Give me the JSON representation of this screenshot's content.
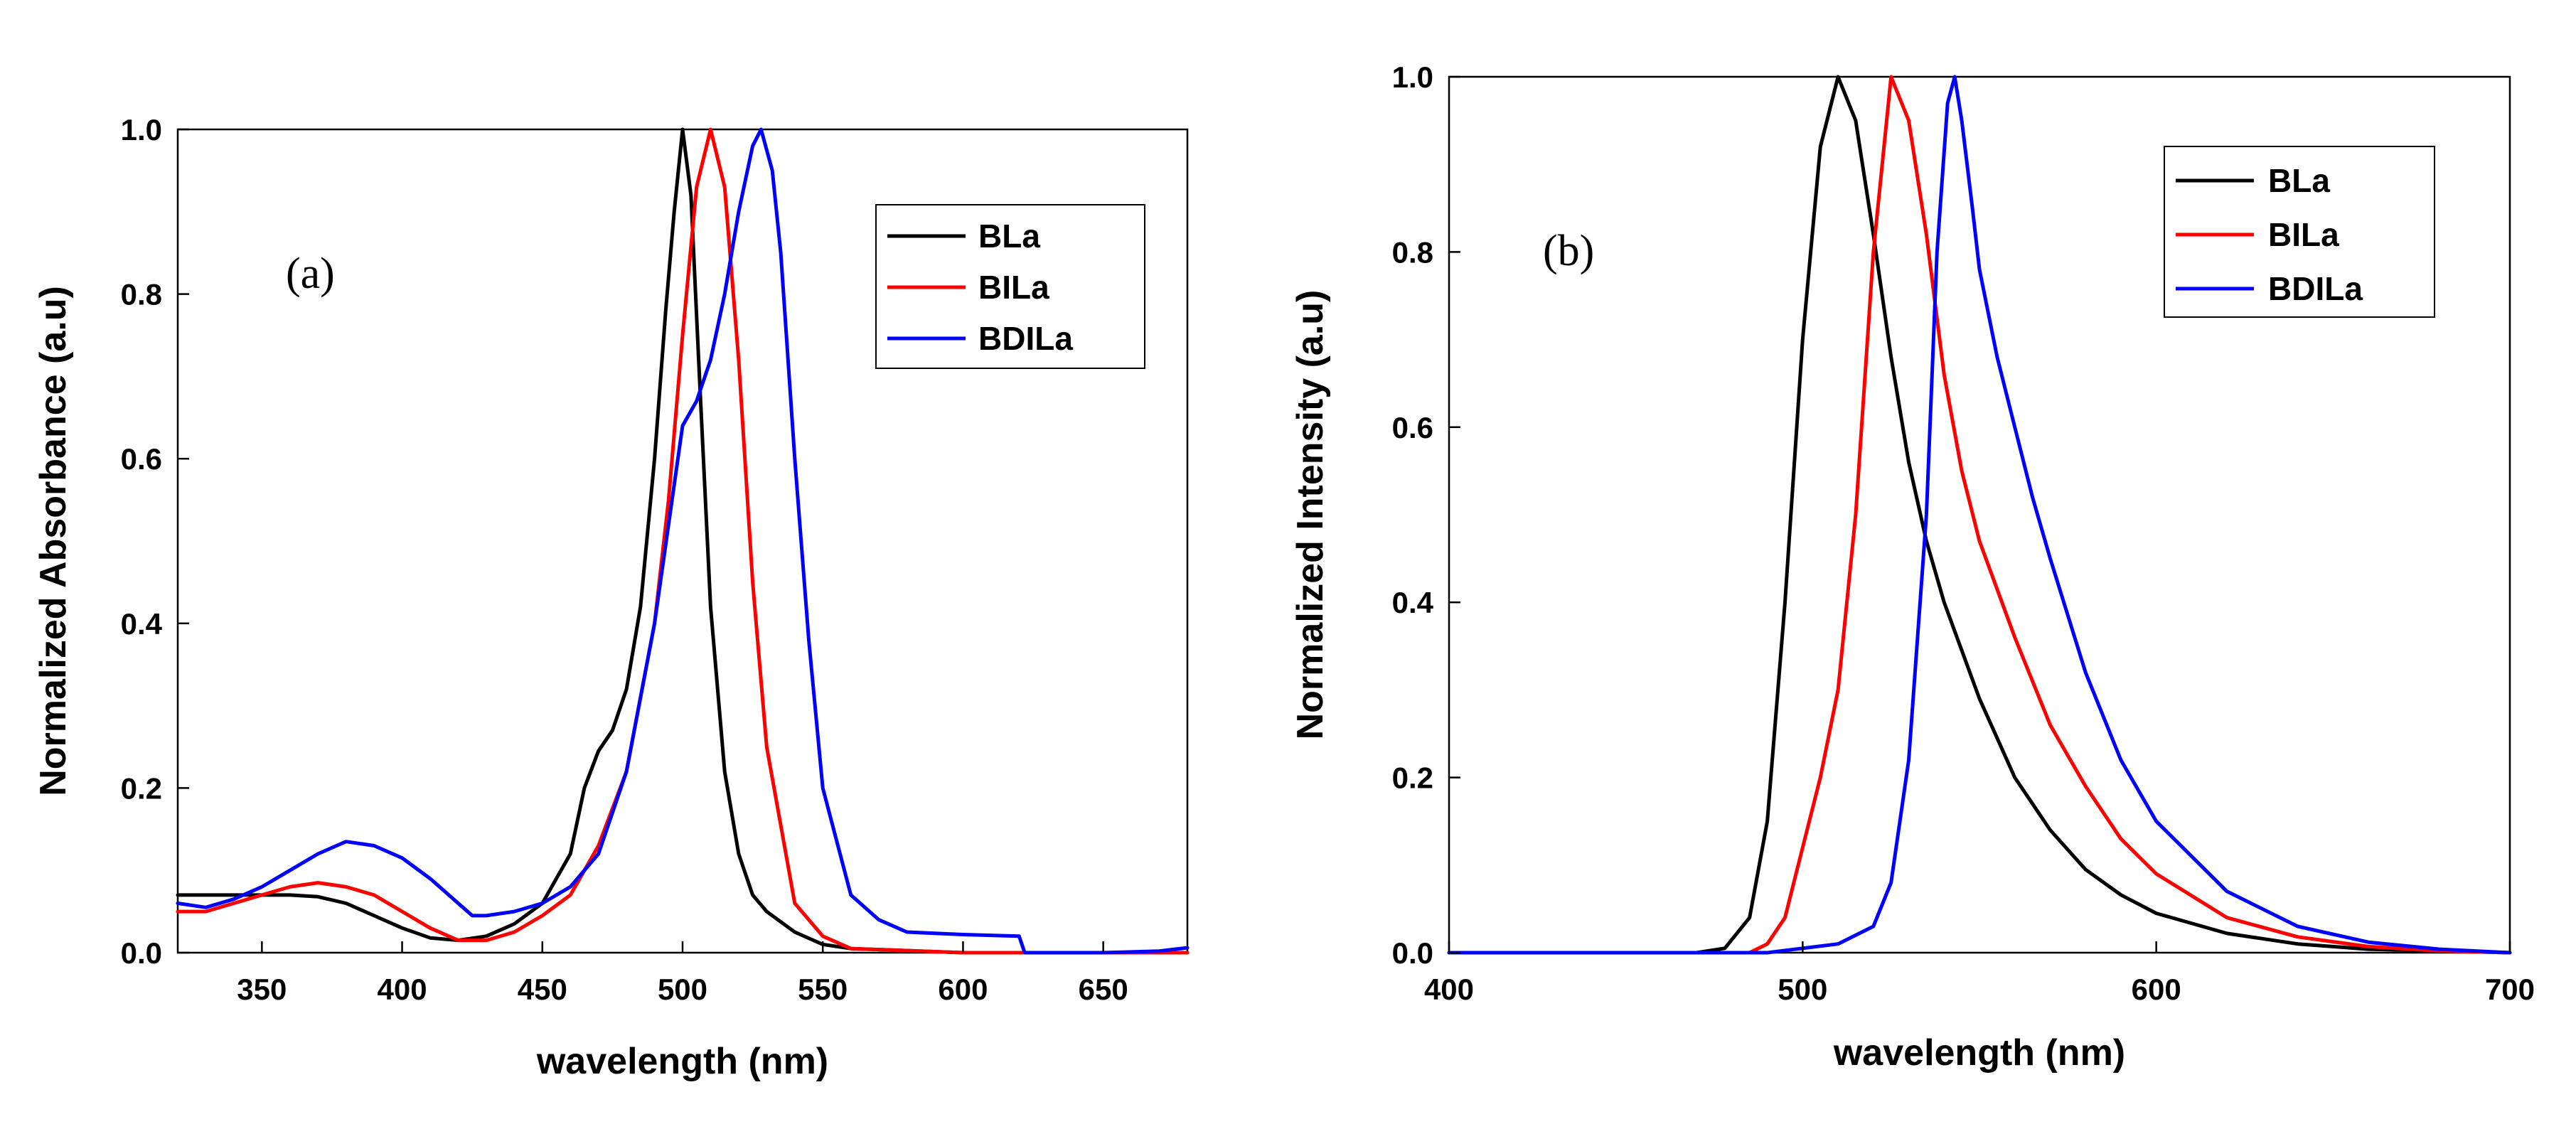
{
  "chart_data": [
    {
      "type": "line",
      "panel_label": "(a)",
      "xlabel": "wavelength (nm)",
      "ylabel": "Normalized Absorbance (a.u)",
      "xlim": [
        320,
        680
      ],
      "ylim": [
        0,
        1.0
      ],
      "xticks": [
        350,
        400,
        450,
        500,
        550,
        600,
        650
      ],
      "yticks": [
        0.0,
        0.2,
        0.4,
        0.6,
        0.8,
        1.0
      ],
      "xtick_labels": [
        "350",
        "400",
        "450",
        "500",
        "550",
        "600",
        "650"
      ],
      "ytick_labels": [
        "0.0",
        "0.2",
        "0.4",
        "0.6",
        "0.8",
        "1.0"
      ],
      "legend_position": "top-right",
      "series": [
        {
          "name": "BLa",
          "color": "#000000",
          "x": [
            320,
            340,
            360,
            370,
            380,
            390,
            400,
            410,
            420,
            430,
            440,
            450,
            460,
            465,
            470,
            475,
            480,
            485,
            490,
            494,
            497,
            500,
            503,
            506,
            510,
            515,
            520,
            525,
            530,
            540,
            550,
            560,
            600,
            680
          ],
          "y": [
            0.07,
            0.07,
            0.07,
            0.068,
            0.06,
            0.045,
            0.03,
            0.018,
            0.015,
            0.02,
            0.035,
            0.06,
            0.12,
            0.2,
            0.245,
            0.27,
            0.32,
            0.42,
            0.6,
            0.78,
            0.9,
            1.0,
            0.92,
            0.7,
            0.42,
            0.22,
            0.12,
            0.07,
            0.05,
            0.025,
            0.01,
            0.005,
            0.0,
            0.0
          ]
        },
        {
          "name": "BILa",
          "color": "#ff0000",
          "x": [
            320,
            330,
            340,
            350,
            360,
            370,
            380,
            390,
            400,
            410,
            420,
            430,
            440,
            450,
            460,
            470,
            480,
            490,
            495,
            500,
            505,
            510,
            515,
            520,
            525,
            530,
            540,
            550,
            560,
            600,
            680
          ],
          "y": [
            0.05,
            0.05,
            0.06,
            0.07,
            0.08,
            0.085,
            0.08,
            0.07,
            0.05,
            0.03,
            0.015,
            0.015,
            0.025,
            0.045,
            0.07,
            0.13,
            0.22,
            0.4,
            0.55,
            0.75,
            0.93,
            1.0,
            0.93,
            0.72,
            0.45,
            0.25,
            0.06,
            0.02,
            0.005,
            0.0,
            0.0
          ]
        },
        {
          "name": "BDILa",
          "color": "#0000ff",
          "x": [
            320,
            330,
            340,
            350,
            360,
            370,
            380,
            390,
            400,
            410,
            420,
            425,
            430,
            440,
            450,
            460,
            470,
            480,
            490,
            495,
            500,
            505,
            510,
            515,
            520,
            525,
            528,
            532,
            535,
            540,
            545,
            550,
            560,
            570,
            580,
            600,
            620,
            622,
            650,
            670,
            680
          ],
          "y": [
            0.06,
            0.055,
            0.065,
            0.08,
            0.1,
            0.12,
            0.135,
            0.13,
            0.115,
            0.09,
            0.06,
            0.045,
            0.045,
            0.05,
            0.06,
            0.08,
            0.12,
            0.22,
            0.4,
            0.52,
            0.64,
            0.67,
            0.72,
            0.8,
            0.9,
            0.98,
            1.0,
            0.95,
            0.85,
            0.6,
            0.38,
            0.2,
            0.07,
            0.04,
            0.025,
            0.022,
            0.02,
            0.0,
            0.0,
            0.002,
            0.006
          ]
        }
      ]
    },
    {
      "type": "line",
      "panel_label": "(b)",
      "xlabel": "wavelength (nm)",
      "ylabel": "Normalized Intensity (a.u)",
      "xlim": [
        400,
        700
      ],
      "ylim": [
        0,
        1.0
      ],
      "xticks": [
        400,
        500,
        600,
        700
      ],
      "yticks": [
        0.0,
        0.2,
        0.4,
        0.6,
        0.8,
        1.0
      ],
      "xtick_labels": [
        "400",
        "500",
        "600",
        "700"
      ],
      "ytick_labels": [
        "0.0",
        "0.2",
        "0.4",
        "0.6",
        "0.8",
        "1.0"
      ],
      "legend_position": "top-right",
      "series": [
        {
          "name": "BLa",
          "color": "#000000",
          "x": [
            400,
            470,
            478,
            485,
            490,
            495,
            500,
            505,
            510,
            515,
            520,
            525,
            530,
            535,
            540,
            550,
            560,
            570,
            580,
            590,
            600,
            620,
            640,
            660,
            700
          ],
          "y": [
            0.0,
            0.0,
            0.005,
            0.04,
            0.15,
            0.4,
            0.7,
            0.92,
            1.0,
            0.95,
            0.82,
            0.68,
            0.56,
            0.47,
            0.4,
            0.29,
            0.2,
            0.14,
            0.095,
            0.066,
            0.045,
            0.022,
            0.01,
            0.004,
            0.0
          ]
        },
        {
          "name": "BILa",
          "color": "#ff0000",
          "x": [
            400,
            485,
            490,
            495,
            500,
            505,
            510,
            515,
            520,
            525,
            530,
            535,
            540,
            545,
            550,
            560,
            570,
            580,
            590,
            600,
            620,
            640,
            660,
            680,
            700
          ],
          "y": [
            0.0,
            0.0,
            0.01,
            0.04,
            0.12,
            0.2,
            0.3,
            0.5,
            0.8,
            1.0,
            0.95,
            0.82,
            0.66,
            0.55,
            0.47,
            0.36,
            0.26,
            0.19,
            0.13,
            0.09,
            0.04,
            0.018,
            0.007,
            0.002,
            0.0
          ]
        },
        {
          "name": "BDILa",
          "color": "#0000ff",
          "x": [
            400,
            490,
            500,
            510,
            520,
            525,
            530,
            535,
            538,
            541,
            543,
            545,
            548,
            550,
            555,
            560,
            565,
            570,
            580,
            590,
            600,
            620,
            640,
            660,
            680,
            700
          ],
          "y": [
            0.0,
            0.0,
            0.005,
            0.01,
            0.03,
            0.08,
            0.22,
            0.5,
            0.8,
            0.97,
            1.0,
            0.95,
            0.85,
            0.78,
            0.68,
            0.6,
            0.52,
            0.45,
            0.32,
            0.22,
            0.15,
            0.07,
            0.03,
            0.012,
            0.004,
            0.0
          ]
        }
      ]
    }
  ]
}
